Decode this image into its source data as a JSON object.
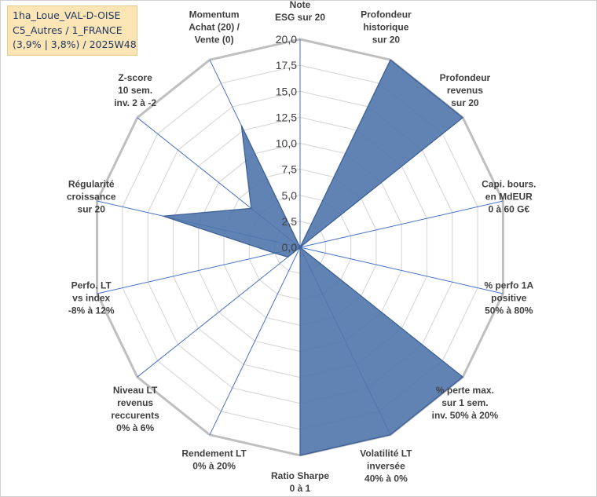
{
  "legend": {
    "line1": "1ha_Loue_VAL-D-OISE",
    "line2": "C5_Autres / 1_FRANCE",
    "line3": "(3,9% | 3,8%) / 2025W48"
  },
  "chart_data": {
    "type": "radar",
    "title": "",
    "rmin": 0,
    "rmax": 20,
    "ticks": [
      "0,0",
      "2,5",
      "5,0",
      "7,5",
      "10,0",
      "12,5",
      "15,0",
      "17,5",
      "20,0"
    ],
    "axes": [
      {
        "lines": [
          "Note",
          "ESG sur 20"
        ]
      },
      {
        "lines": [
          "Profondeur",
          "historique",
          "sur 20"
        ]
      },
      {
        "lines": [
          "Profondeur",
          "revenus",
          "sur 20"
        ]
      },
      {
        "lines": [
          "Capi. bours.",
          "en MdEUR",
          "0 à 60 G€"
        ]
      },
      {
        "lines": [
          "% perfo 1A",
          "positive",
          "50% à 80%"
        ]
      },
      {
        "lines": [
          "% perte max.",
          "sur 1 sem.",
          "inv. 50% à 20%"
        ]
      },
      {
        "lines": [
          "Volatilité LT",
          "inversée",
          "40% à 0%"
        ]
      },
      {
        "lines": [
          "Ratio Sharpe",
          "0 à 1"
        ]
      },
      {
        "lines": [
          "Rendement LT",
          "0% à 20%"
        ]
      },
      {
        "lines": [
          "Niveau LT",
          "revenus",
          "reccurents",
          "0% à 6%"
        ]
      },
      {
        "lines": [
          "Perfo. LT",
          "vs index",
          "-8% à 12%"
        ]
      },
      {
        "lines": [
          "Régularité",
          "croissance",
          "sur 20"
        ]
      },
      {
        "lines": [
          "Z-score",
          "10 sem.",
          "inv. 2 à -2"
        ]
      },
      {
        "lines": [
          "Momentum",
          "Achat (20) /",
          "Vente (0)"
        ]
      }
    ],
    "series": [
      {
        "name": "1ha_Loue_VAL-D-OISE",
        "values": [
          0,
          20,
          20,
          0,
          0,
          20,
          20,
          20,
          0,
          1.5,
          2.5,
          13.5,
          6,
          13
        ],
        "color": "#4f75ab"
      }
    ]
  }
}
